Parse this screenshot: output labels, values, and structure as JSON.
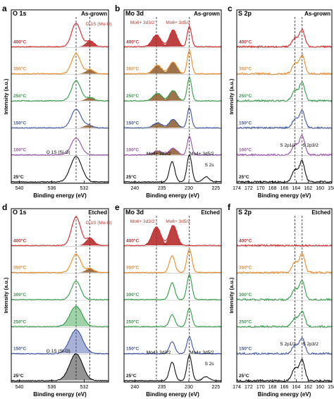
{
  "figure": {
    "temp_colors": {
      "400": "#d62728",
      "350": "#f08a24",
      "250": "#2f9e44",
      "300": "#2f9e44",
      "150": "#3d55a8",
      "100": "#9b4fb0",
      "25": "#111111"
    },
    "accent_fill_red": "#b22222",
    "accent_fill_brown": "#8b5a2b"
  },
  "chart_data": [
    {
      "type": "line",
      "panel_letter": "a",
      "title": "O 1s",
      "condition": "As-grown",
      "xlabel": "Binding energy (eV)",
      "ylabel": "Intensity (a.u.)",
      "xlim": [
        541,
        529
      ],
      "xticks": [
        "540",
        "536",
        "532"
      ],
      "series": [
        {
          "name": "400°C",
          "peaks": [
            {
              "center": 533.0,
              "height": 0.7,
              "width": 0.55
            },
            {
              "center": 531.3,
              "height": 0.18,
              "width": 0.5
            }
          ]
        },
        {
          "name": "350°C",
          "peaks": [
            {
              "center": 533.0,
              "height": 0.6,
              "width": 0.55
            },
            {
              "center": 531.3,
              "height": 0.12,
              "width": 0.5
            }
          ]
        },
        {
          "name": "250°C",
          "peaks": [
            {
              "center": 533.0,
              "height": 0.6,
              "width": 0.55
            },
            {
              "center": 531.3,
              "height": 0.1,
              "width": 0.5
            }
          ]
        },
        {
          "name": "150°C",
          "peaks": [
            {
              "center": 533.0,
              "height": 0.55,
              "width": 0.6
            },
            {
              "center": 531.5,
              "height": 0.08,
              "width": 0.5
            }
          ]
        },
        {
          "name": "100°C",
          "peaks": [
            {
              "center": 533.0,
              "height": 0.5,
              "width": 0.6
            }
          ]
        },
        {
          "name": "25°C",
          "peaks": [
            {
              "center": 533.0,
              "height": 0.75,
              "width": 0.7
            }
          ]
        }
      ],
      "annotations": [
        "O 1S (Mo-O)",
        "O 1S (Si-O)"
      ]
    },
    {
      "type": "line",
      "panel_letter": "b",
      "title": "Mo 3d",
      "condition": "As-grown",
      "xlabel": "Binding energy (eV)",
      "ylabel": "",
      "xlim": [
        242,
        224
      ],
      "xticks": [
        "240",
        "235",
        "230",
        "225"
      ],
      "series": [
        {
          "name": "400°C",
          "peaks": [
            {
              "center": 236.0,
              "height": 0.35,
              "width": 0.8
            },
            {
              "center": 232.9,
              "height": 0.5,
              "width": 0.7
            },
            {
              "center": 229.9,
              "height": 0.6,
              "width": 0.4
            }
          ]
        },
        {
          "name": "350°C",
          "peaks": [
            {
              "center": 235.8,
              "height": 0.25,
              "width": 0.8
            },
            {
              "center": 232.9,
              "height": 0.35,
              "width": 0.7
            },
            {
              "center": 229.9,
              "height": 0.7,
              "width": 0.4
            }
          ]
        },
        {
          "name": "250°C",
          "peaks": [
            {
              "center": 235.8,
              "height": 0.22,
              "width": 0.8
            },
            {
              "center": 232.9,
              "height": 0.3,
              "width": 0.7
            },
            {
              "center": 229.9,
              "height": 0.7,
              "width": 0.4
            }
          ]
        },
        {
          "name": "150°C",
          "peaks": [
            {
              "center": 235.8,
              "height": 0.15,
              "width": 0.8
            },
            {
              "center": 232.9,
              "height": 0.25,
              "width": 0.7
            },
            {
              "center": 229.9,
              "height": 0.6,
              "width": 0.4
            }
          ]
        },
        {
          "name": "100°C",
          "peaks": [
            {
              "center": 235.8,
              "height": 0.12,
              "width": 0.8
            },
            {
              "center": 232.9,
              "height": 0.2,
              "width": 0.7
            },
            {
              "center": 229.9,
              "height": 0.55,
              "width": 0.4
            }
          ]
        },
        {
          "name": "25°C",
          "peaks": [
            {
              "center": 233.1,
              "height": 0.6,
              "width": 0.5
            },
            {
              "center": 229.9,
              "height": 0.8,
              "width": 0.45
            },
            {
              "center": 226.8,
              "height": 0.15,
              "width": 0.6
            }
          ]
        }
      ],
      "annotations": [
        "Mo6+ 3d3/2",
        "Mo6+ 3d5/2",
        "Mo4+ 3d3/2",
        "Mo4+ 3d5/2",
        "S 2s"
      ]
    },
    {
      "type": "line",
      "panel_letter": "c",
      "title": "S 2p",
      "condition": "As-grown",
      "xlabel": "Binding energy (eV)",
      "ylabel": "Intensity (a.u.)",
      "xlim": [
        174,
        158
      ],
      "xticks": [
        "174",
        "172",
        "170",
        "168",
        "166",
        "164",
        "162",
        "160",
        "158"
      ],
      "series": [
        {
          "name": "400°C",
          "peaks": [
            {
              "center": 164.2,
              "height": 0.25,
              "width": 0.5
            },
            {
              "center": 163.0,
              "height": 0.5,
              "width": 0.45
            }
          ]
        },
        {
          "name": "350°C",
          "peaks": [
            {
              "center": 164.2,
              "height": 0.3,
              "width": 0.5
            },
            {
              "center": 163.0,
              "height": 0.55,
              "width": 0.45
            }
          ]
        },
        {
          "name": "250°C",
          "peaks": [
            {
              "center": 164.2,
              "height": 0.3,
              "width": 0.5
            },
            {
              "center": 163.0,
              "height": 0.55,
              "width": 0.45
            }
          ]
        },
        {
          "name": "150°C",
          "peaks": [
            {
              "center": 164.2,
              "height": 0.25,
              "width": 0.5
            },
            {
              "center": 163.0,
              "height": 0.5,
              "width": 0.45
            }
          ]
        },
        {
          "name": "100°C",
          "peaks": [
            {
              "center": 164.2,
              "height": 0.3,
              "width": 0.5
            },
            {
              "center": 163.0,
              "height": 0.55,
              "width": 0.45
            }
          ]
        },
        {
          "name": "25°C",
          "peaks": [
            {
              "center": 164.2,
              "height": 0.35,
              "width": 0.5
            },
            {
              "center": 163.0,
              "height": 0.6,
              "width": 0.45
            }
          ]
        }
      ],
      "annotations": [
        "S 2p1/2",
        "S 2p3/2"
      ]
    },
    {
      "type": "line",
      "panel_letter": "d",
      "title": "O 1s",
      "condition": "Etched",
      "xlabel": "Binding energy (eV)",
      "ylabel": "Intensity (a.u.)",
      "xlim": [
        541,
        529
      ],
      "xticks": [
        "540",
        "536",
        "532"
      ],
      "series": [
        {
          "name": "400°C",
          "peaks": [
            {
              "center": 533.0,
              "height": 0.85,
              "width": 0.55
            },
            {
              "center": 531.3,
              "height": 0.22,
              "width": 0.5
            }
          ]
        },
        {
          "name": "350°C",
          "peaks": [
            {
              "center": 533.0,
              "height": 0.55,
              "width": 0.55
            },
            {
              "center": 531.3,
              "height": 0.12,
              "width": 0.5
            }
          ]
        },
        {
          "name": "300°C",
          "peaks": [
            {
              "center": 533.0,
              "height": 0.55,
              "width": 0.55
            }
          ]
        },
        {
          "name": "250°C",
          "peaks": [
            {
              "center": 533.0,
              "height": 0.6,
              "width": 0.75
            }
          ]
        },
        {
          "name": "150°C",
          "peaks": [
            {
              "center": 533.0,
              "height": 0.7,
              "width": 0.8
            }
          ]
        },
        {
          "name": "25°C",
          "peaks": [
            {
              "center": 533.0,
              "height": 0.8,
              "width": 0.8
            }
          ]
        }
      ],
      "annotations": [
        "O 1S (Mo-O)",
        "O 1S (Si-O)"
      ]
    },
    {
      "type": "line",
      "panel_letter": "e",
      "title": "Mo 3d",
      "condition": "Etched",
      "xlabel": "Binding energy (eV)",
      "ylabel": "",
      "xlim": [
        242,
        224
      ],
      "xticks": [
        "240",
        "235",
        "230",
        "225"
      ],
      "series": [
        {
          "name": "400°C",
          "peaks": [
            {
              "center": 236.0,
              "height": 0.55,
              "width": 0.8
            },
            {
              "center": 232.9,
              "height": 0.6,
              "width": 0.7
            }
          ]
        },
        {
          "name": "350°C",
          "peaks": [
            {
              "center": 233.1,
              "height": 0.5,
              "width": 0.5
            },
            {
              "center": 229.9,
              "height": 0.7,
              "width": 0.45
            }
          ]
        },
        {
          "name": "300°C",
          "peaks": [
            {
              "center": 233.1,
              "height": 0.5,
              "width": 0.5
            },
            {
              "center": 229.9,
              "height": 0.75,
              "width": 0.45
            }
          ]
        },
        {
          "name": "250°C",
          "peaks": [
            {
              "center": 233.1,
              "height": 0.35,
              "width": 0.5
            },
            {
              "center": 229.9,
              "height": 0.55,
              "width": 0.45
            }
          ]
        },
        {
          "name": "150°C",
          "peaks": [
            {
              "center": 233.1,
              "height": 0.35,
              "width": 0.5
            },
            {
              "center": 229.9,
              "height": 0.5,
              "width": 0.45
            }
          ]
        },
        {
          "name": "25°C",
          "peaks": [
            {
              "center": 233.1,
              "height": 0.55,
              "width": 0.5
            },
            {
              "center": 229.9,
              "height": 0.75,
              "width": 0.45
            },
            {
              "center": 226.8,
              "height": 0.12,
              "width": 0.6
            }
          ]
        }
      ],
      "annotations": [
        "Mo6+ 3d3/2",
        "Mo6+ 3d5/2",
        "Mo4+ 3d3/2",
        "Mo4+ 3d5/2",
        "S 2s"
      ]
    },
    {
      "type": "line",
      "panel_letter": "f",
      "title": "S 2p",
      "condition": "Etched",
      "xlabel": "Binding energy (eV)",
      "ylabel": "Intensity (a.u.)",
      "xlim": [
        174,
        158
      ],
      "xticks": [
        "174",
        "172",
        "170",
        "168",
        "166",
        "164",
        "162",
        "160",
        "158"
      ],
      "series": [
        {
          "name": "400°C",
          "peaks": []
        },
        {
          "name": "350°C",
          "peaks": [
            {
              "center": 164.2,
              "height": 0.3,
              "width": 0.5
            },
            {
              "center": 163.0,
              "height": 0.55,
              "width": 0.45
            }
          ]
        },
        {
          "name": "300°C",
          "peaks": [
            {
              "center": 164.2,
              "height": 0.3,
              "width": 0.5
            },
            {
              "center": 163.0,
              "height": 0.55,
              "width": 0.45
            }
          ]
        },
        {
          "name": "250°C",
          "peaks": [
            {
              "center": 164.2,
              "height": 0.25,
              "width": 0.5
            },
            {
              "center": 163.0,
              "height": 0.45,
              "width": 0.45
            }
          ]
        },
        {
          "name": "150°C",
          "peaks": [
            {
              "center": 164.2,
              "height": 0.25,
              "width": 0.5
            },
            {
              "center": 163.0,
              "height": 0.45,
              "width": 0.45
            }
          ]
        },
        {
          "name": "25°C",
          "peaks": [
            {
              "center": 164.2,
              "height": 0.35,
              "width": 0.5
            },
            {
              "center": 163.0,
              "height": 0.6,
              "width": 0.45
            }
          ]
        }
      ],
      "annotations": [
        "S 2p1/2",
        "S 2p3/2"
      ]
    }
  ]
}
